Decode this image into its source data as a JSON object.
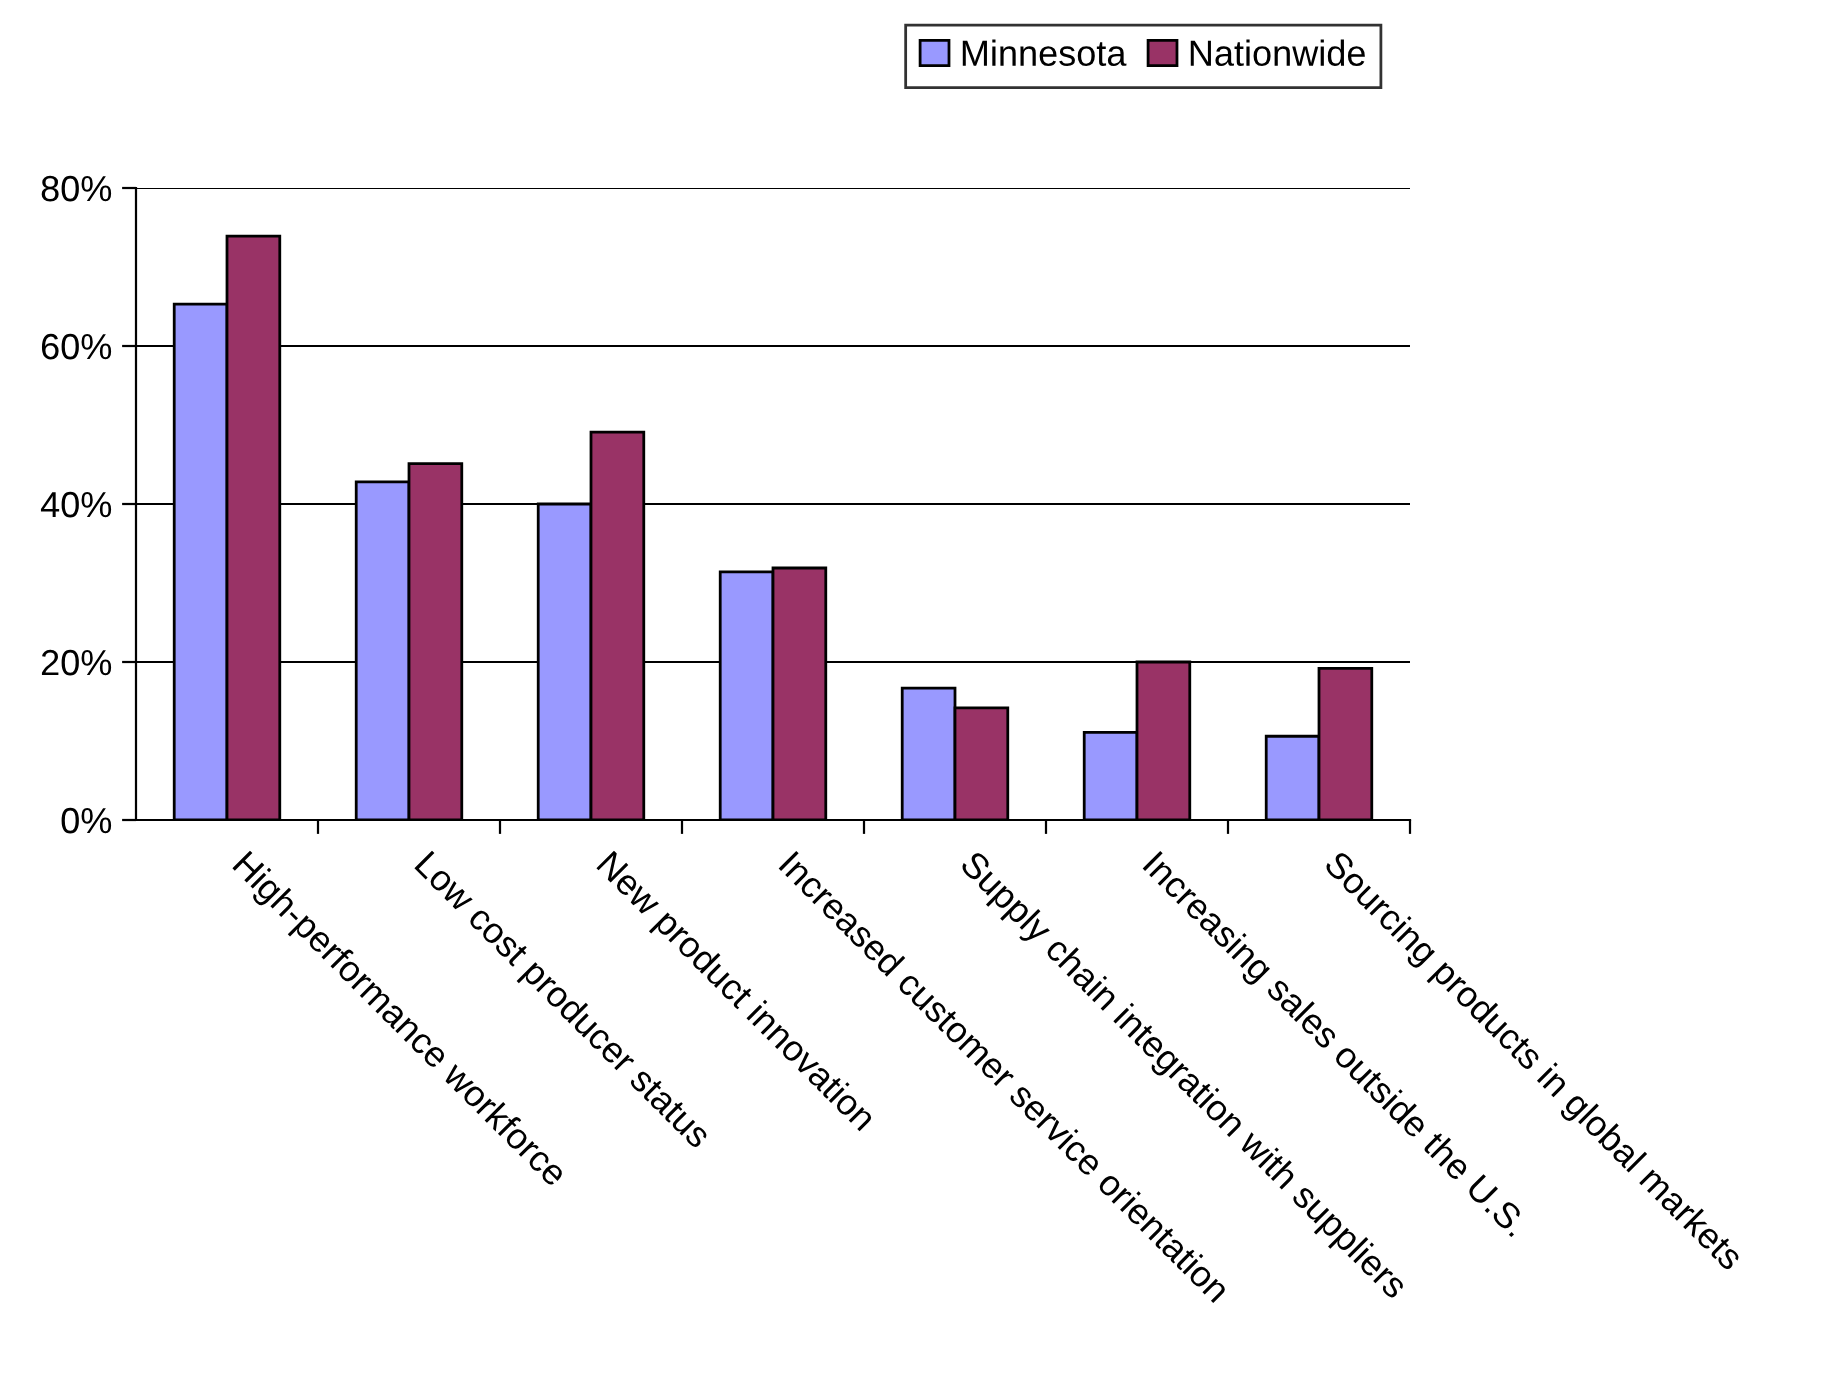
{
  "chart_data": {
    "type": "bar",
    "categories": [
      "High-performance workforce",
      "Low cost producer status",
      "New product innovation",
      "Increased customer service orientation",
      "Supply chain integration with suppliers",
      "Increasing sales outside the U.S.",
      "Sourcing products in global markets"
    ],
    "series": [
      {
        "name": "Minnesota",
        "color": "#9999ff",
        "values": [
          65.3,
          42.8,
          40,
          31.4,
          16.7,
          11.1,
          10.6
        ]
      },
      {
        "name": "Nationwide",
        "color": "#993366",
        "values": [
          73.9,
          45.1,
          49.1,
          31.9,
          14.2,
          20,
          19.2
        ]
      }
    ],
    "ylim": [
      0,
      80
    ],
    "yticks": [
      {
        "value": 0,
        "label": "0%"
      },
      {
        "value": 20,
        "label": "20%"
      },
      {
        "value": 40,
        "label": "40%"
      },
      {
        "value": 60,
        "label": "60%"
      },
      {
        "value": 80,
        "label": "80%"
      }
    ],
    "grid": "y",
    "legend": "top"
  }
}
